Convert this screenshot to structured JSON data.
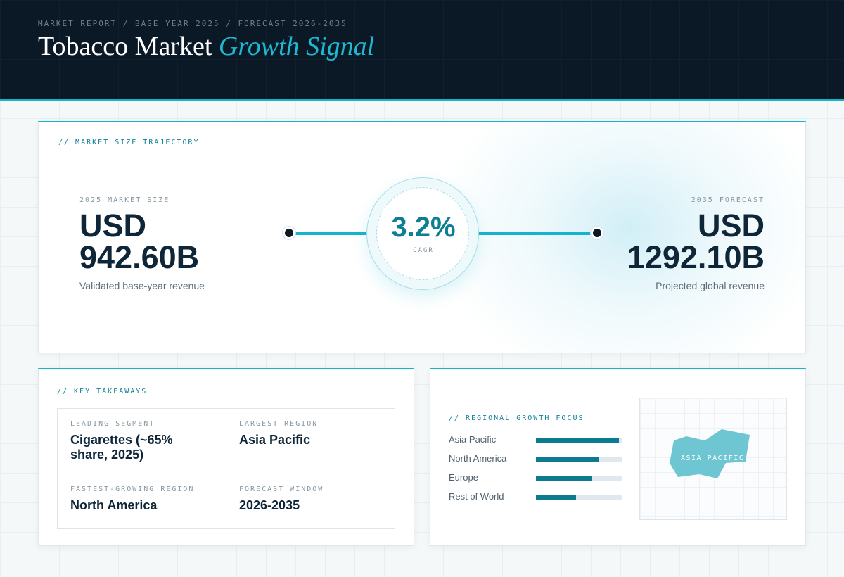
{
  "header": {
    "eyebrow": "MARKET REPORT / BASE YEAR 2025 / FORECAST 2026-2035",
    "title_main": "Tobacco Market",
    "title_accent": "Growth Signal"
  },
  "trajectory": {
    "section_label": "// MARKET SIZE TRAJECTORY",
    "start": {
      "label": "2025 MARKET SIZE",
      "currency": "USD",
      "value": "942.60B",
      "caption": "Validated base-year revenue"
    },
    "end": {
      "label": "2035 FORECAST",
      "currency": "USD",
      "value": "1292.10B",
      "caption": "Projected global revenue"
    },
    "cagr": {
      "value": "3.2%",
      "label": "CAGR"
    }
  },
  "takeaways": {
    "section_label": "// KEY TAKEAWAYS",
    "items": [
      {
        "label": "LEADING SEGMENT",
        "value": "Cigarettes (~65% share, 2025)"
      },
      {
        "label": "LARGEST REGION",
        "value": "Asia Pacific"
      },
      {
        "label": "FASTEST-GROWING REGION",
        "value": "North America"
      },
      {
        "label": "FORECAST WINDOW",
        "value": "2026-2035"
      }
    ]
  },
  "regional": {
    "section_label": "// REGIONAL GROWTH FOCUS",
    "regions": [
      {
        "name": "Asia Pacific",
        "level": 0.96
      },
      {
        "name": "North America",
        "level": 0.72
      },
      {
        "name": "Europe",
        "level": 0.64
      },
      {
        "name": "Rest of World",
        "level": 0.46
      }
    ],
    "map_label": "ASIA PACIFIC",
    "map_highlight_color": "#6fc6d3",
    "bar_color": "#0d7b8f"
  }
}
